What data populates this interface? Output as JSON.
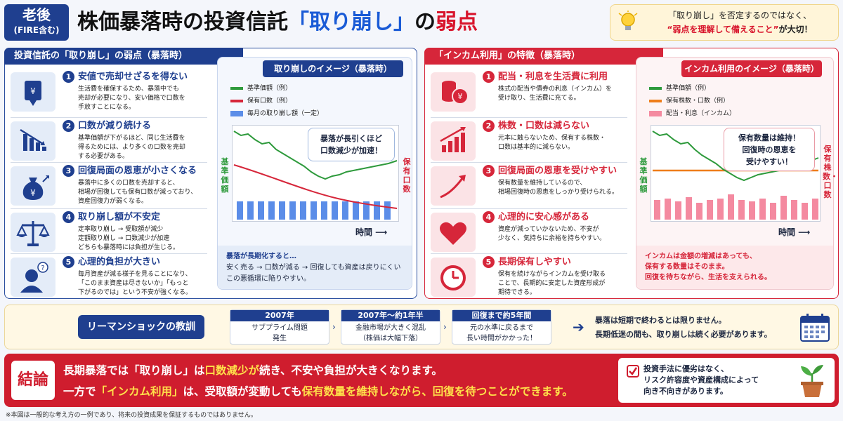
{
  "header": {
    "badge_line1": "老後",
    "badge_line2": "(FIRE含む)",
    "title_part1": "株価暴落時の投資信託",
    "title_part2": "「取り崩し」",
    "title_part3": "の",
    "title_part4": "弱点",
    "note_line1": "「取り崩し」を否定するのではなく、",
    "note_line2_red": "“弱点を理解して備えること”",
    "note_line2_rest": "が大切！"
  },
  "left_panel": {
    "tab": "投資信託の「取り崩し」の弱点（暴落時）",
    "items": [
      {
        "num": "1",
        "icon": "down-arrow-icon",
        "title": "安値で売却せざるを得ない",
        "body": "生活費を確保するため、暴落中でも\n売却が必要になり、安い価格で口数を\n手放すことになる。"
      },
      {
        "num": "2",
        "icon": "declining-bar-chart-icon",
        "title": "口数が減り続ける",
        "body": "基準価額が下がるほど、同じ生活費を\n得るためには、より多くの口数を売却\nする必要がある。"
      },
      {
        "num": "3",
        "icon": "money-bag-yen-icon",
        "title": "回復局面の恩恵が小さくなる",
        "body": "暴落中に多くの口数を売却すると、\n相場が回復しても保有口数が減っており、\n資産回復力が弱くなる。"
      },
      {
        "num": "4",
        "icon": "balance-scale-icon",
        "title": "取り崩し額が不安定",
        "body": "定率取り崩し → 受取額が減少\n定額取り崩し → 口数減少が加速\nどちらも暴落時には負担が生じる。"
      },
      {
        "num": "5",
        "icon": "worried-person-icon",
        "title": "心理的負担が大きい",
        "body": "毎月資産が減る様子を見ることになり、\n「このまま資産は尽きないか」「もっと\n下がるのでは」という不安が強くなる。"
      }
    ],
    "chart": {
      "title": "取り崩しのイメージ（暴落時）",
      "legend": [
        "基準価額（例）",
        "保有口数（例）",
        "毎月の取り崩し額（一定）"
      ],
      "callout": "暴落が長引くほど\n口数減少が加速！",
      "ylabel_left": "基準価額",
      "ylabel_right": "保有口数",
      "xlabel": "時間 ⟶",
      "note_head": "暴落が長期化すると…",
      "note_body": "安く売る → 口数が減る → 回復しても資産は戻りにくい\nこの悪循環に陥りやすい。"
    }
  },
  "right_panel": {
    "tab": "「インカム利用」の特徴（暴落時）",
    "items": [
      {
        "num": "1",
        "icon": "coins-yen-icon",
        "title": "配当・利息を生活費に利用",
        "body": "株式の配当や債券の利息（インカム）を\n受け取り、生活費に充てる。"
      },
      {
        "num": "2",
        "icon": "rising-bar-chart-icon",
        "title": "株数・口数は減らない",
        "body": "元本に触らないため、保有する株数・\n口数は基本的に減らない。"
      },
      {
        "num": "3",
        "icon": "trend-up-arrow-icon",
        "title": "回復局面の恩恵を受けやすい",
        "body": "保有数量を維持しているので、\n相場回復時の恩恵をしっかり受けられる。"
      },
      {
        "num": "4",
        "icon": "heart-icon",
        "title": "心理的に安心感がある",
        "body": "資産が減っていかないため、不安が\n少なく、気持ちに余裕を持ちやすい。"
      },
      {
        "num": "5",
        "icon": "clock-icon",
        "title": "長期保有しやすい",
        "body": "保有を続けながらインカムを受け取る\nことで、長期的に安定した資産形成が\n期待できる。"
      }
    ],
    "chart": {
      "title": "インカム利用のイメージ（暴落時）",
      "legend": [
        "基準価額（例）",
        "保有株数・口数（例）",
        "配当・利息（インカム）"
      ],
      "callout": "保有数量は維持！\n回復時の恩恵を\n受けやすい！",
      "ylabel_left": "基準価額",
      "ylabel_right": "保有株数・口数",
      "xlabel": "時間 ⟶",
      "note_body": "インカムは金額の増減はあっても、\n保有する数量はそのまま。\n回復を待ちながら、生活を支えられる。"
    }
  },
  "lehman": {
    "title": "リーマンショックの教訓",
    "steps": [
      {
        "head": "2007年",
        "body": "サブプライム問題\n発生"
      },
      {
        "head": "2007年〜約1年半",
        "body": "金融市場が大きく混乱\n（株価は大幅下落）"
      },
      {
        "head": "回復まで約5年間",
        "body": "元の水準に戻るまで\n長い時間がかかった！"
      }
    ],
    "text": "暴落は短期で終わるとは限りません。\n長期低迷の間も、取り崩しは続く必要があります。",
    "icon": "calendar-icon"
  },
  "conclusion": {
    "tag": "結論",
    "line1": [
      "長期暴落では「取り崩し」は",
      "口数減少が",
      "続き、不安や負担が大きくなります。"
    ],
    "line2": [
      "一方で",
      "「インカム利用」",
      "は、受取額が変動しても",
      "保有数量を維持しながら、回復を待つことができます。"
    ],
    "box_text": "投資手法に優劣はなく、\nリスク許容度や資産構成によって\n向き不向きがあります。",
    "box_icon": "plant-pot-icon"
  },
  "footnote": "※本図は一般的な考え方の一例であり、将来の投資成果を保証するものではありません。",
  "colors": {
    "navy": "#1f3f8f",
    "red": "#d6263a",
    "green": "#2e9a3c",
    "orange": "#ee7d1a",
    "pink": "#f48aa0",
    "bar_blue": "#5b8de8"
  }
}
